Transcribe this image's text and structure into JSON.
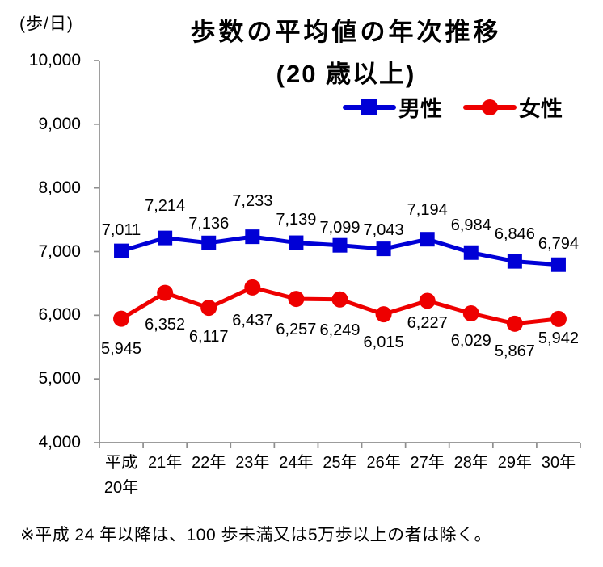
{
  "unit_label": "(歩/日)",
  "title": "歩数の平均値の年次推移",
  "subtitle": "(20 歳以上)",
  "legend": {
    "male_label": "男性",
    "female_label": "女性"
  },
  "footnote": "※平成 24 年以降は、100 歩未満又は5万歩以上の者は除く。",
  "colors": {
    "male": "#0000d6",
    "female": "#ee0000",
    "axis": "#8e8e8e",
    "text": "#000000"
  },
  "chart_data": {
    "type": "line",
    "title": "歩数の平均値の年次推移（20 歳以上）",
    "ylabel": "歩/日",
    "xlabel": "",
    "categories": [
      "平成\n20年",
      "21年",
      "22年",
      "23年",
      "24年",
      "25年",
      "26年",
      "27年",
      "28年",
      "29年",
      "30年"
    ],
    "series": [
      {
        "name": "男性",
        "marker": "square",
        "color": "#0000d6",
        "values": [
          7011,
          7214,
          7136,
          7233,
          7139,
          7099,
          7043,
          7194,
          6984,
          6846,
          6794
        ],
        "label_side": "above",
        "label_dy": [
          -33,
          -47,
          -31,
          -51,
          -36,
          -29,
          -30,
          -43,
          -41,
          -41,
          -33
        ]
      },
      {
        "name": "女性",
        "marker": "circle",
        "color": "#ee0000",
        "values": [
          5945,
          6352,
          6117,
          6437,
          6257,
          6249,
          6015,
          6227,
          6029,
          5867,
          5942
        ],
        "label_side": "below",
        "label_dy": [
          30,
          32,
          29,
          34,
          31,
          31,
          28,
          21,
          27,
          27,
          17
        ]
      }
    ],
    "ylim": [
      4000,
      10000
    ],
    "ytick_step": 1000,
    "ytick_labels": [
      "4,000",
      "5,000",
      "6,000",
      "7,000",
      "8,000",
      "9,000",
      "10,000"
    ],
    "grid": false,
    "legend_position": "top-right"
  }
}
